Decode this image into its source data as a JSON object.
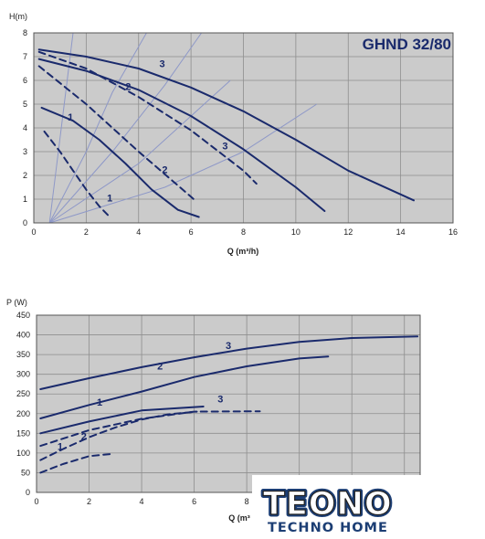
{
  "model_label": "GHND 32/80",
  "logo": {
    "main": "TEONO",
    "sub": "TECHNO HOME"
  },
  "colors": {
    "curve": "#1a2a6c",
    "plot_bg": "#cbcbcb",
    "grid": "#8e8e8e",
    "system_curve": "#8e98c8"
  },
  "chart_data": [
    {
      "type": "line",
      "title": "",
      "xlabel": "Q (m³/h)",
      "ylabel": "H(m)",
      "xlim": [
        0,
        16
      ],
      "ylim": [
        0,
        8
      ],
      "xticks": [
        "0",
        "2",
        "4",
        "6",
        "8",
        "10",
        "12",
        "14",
        "16"
      ],
      "yticks": [
        "0",
        "1",
        "2",
        "3",
        "4",
        "5",
        "6",
        "7",
        "8"
      ],
      "grid": true,
      "series": [
        {
          "name": "1",
          "style": "solid",
          "x": [
            0.3,
            1.5,
            2.5,
            3.5,
            4.5,
            5.5,
            6.3
          ],
          "y": [
            4.85,
            4.3,
            3.5,
            2.5,
            1.4,
            0.55,
            0.25
          ]
        },
        {
          "name": "2",
          "style": "solid",
          "x": [
            0.2,
            2,
            4,
            6,
            8,
            10,
            11.1
          ],
          "y": [
            6.9,
            6.4,
            5.6,
            4.5,
            3.1,
            1.5,
            0.5
          ]
        },
        {
          "name": "3",
          "style": "solid",
          "x": [
            0.2,
            2,
            4,
            6,
            8,
            10,
            12,
            14.5
          ],
          "y": [
            7.3,
            7.0,
            6.5,
            5.7,
            4.7,
            3.5,
            2.2,
            0.95
          ]
        },
        {
          "name": "1",
          "style": "dashed",
          "x": [
            0.4,
            1,
            1.5,
            2,
            2.5,
            2.9
          ],
          "y": [
            3.85,
            3.0,
            2.2,
            1.4,
            0.7,
            0.25
          ]
        },
        {
          "name": "2",
          "style": "dashed",
          "x": [
            0.2,
            2,
            4,
            6,
            6.1
          ],
          "y": [
            6.6,
            5.0,
            3.0,
            1.1,
            1.0
          ]
        },
        {
          "name": "3",
          "style": "dashed",
          "x": [
            0.2,
            2,
            4,
            6,
            8,
            8.5
          ],
          "y": [
            7.2,
            6.5,
            5.3,
            3.9,
            2.2,
            1.65
          ]
        }
      ],
      "system_curves": [
        {
          "x": [
            0.6,
            1.05,
            1.5
          ],
          "y": [
            0,
            4,
            8
          ]
        },
        {
          "x": [
            0.6,
            2.0,
            3.0,
            4.3
          ],
          "y": [
            0,
            3,
            5.5,
            8
          ]
        },
        {
          "x": [
            0.6,
            3.0,
            5.0,
            6.4
          ],
          "y": [
            0,
            3,
            5.8,
            8
          ]
        },
        {
          "x": [
            0.6,
            4.0,
            6.5,
            7.5
          ],
          "y": [
            0,
            2.5,
            5,
            6
          ]
        },
        {
          "x": [
            0.6,
            5.0,
            8.0,
            10.8
          ],
          "y": [
            0,
            1.5,
            3.0,
            5
          ]
        }
      ],
      "curve_labels": [
        {
          "text": "1",
          "x": 1.4,
          "y": 4.3
        },
        {
          "text": "1",
          "x": 2.9,
          "y": 0.9
        },
        {
          "text": "2",
          "x": 3.6,
          "y": 5.6
        },
        {
          "text": "2",
          "x": 5.0,
          "y": 2.1
        },
        {
          "text": "3",
          "x": 4.9,
          "y": 6.55
        },
        {
          "text": "3",
          "x": 7.3,
          "y": 3.1
        }
      ]
    },
    {
      "type": "line",
      "title": "",
      "xlabel": "Q (m³",
      "ylabel": "P (W)",
      "xlim": [
        0,
        14.6
      ],
      "ylim": [
        0,
        450
      ],
      "xticks": [
        "0",
        "2",
        "4",
        "6",
        "8"
      ],
      "xtick_values": [
        0,
        2,
        4,
        6,
        8
      ],
      "yticks": [
        "0",
        "50",
        "100",
        "150",
        "200",
        "250",
        "300",
        "350",
        "400",
        "450"
      ],
      "grid": true,
      "series": [
        {
          "name": "1",
          "style": "solid",
          "x": [
            0.15,
            2,
            4,
            6.35
          ],
          "y": [
            150,
            180,
            208,
            218
          ]
        },
        {
          "name": "2",
          "style": "solid",
          "x": [
            0.15,
            2,
            4,
            6,
            8,
            10,
            11.1
          ],
          "y": [
            188,
            222,
            256,
            293,
            320,
            340,
            345
          ]
        },
        {
          "name": "3",
          "style": "solid",
          "x": [
            0.15,
            2,
            4,
            6,
            8,
            10,
            12,
            14.5
          ],
          "y": [
            262,
            290,
            318,
            343,
            365,
            382,
            392,
            396
          ]
        },
        {
          "name": "1",
          "style": "dashed",
          "x": [
            0.15,
            1,
            2,
            2.9
          ],
          "y": [
            50,
            72,
            92,
            98
          ]
        },
        {
          "name": "2",
          "style": "dashed",
          "x": [
            0.15,
            1,
            2,
            3,
            4,
            5,
            6.1
          ],
          "y": [
            82,
            110,
            140,
            165,
            185,
            198,
            205
          ]
        },
        {
          "name": "3",
          "style": "dashed",
          "x": [
            0.15,
            2,
            4,
            6,
            8.5
          ],
          "y": [
            118,
            158,
            187,
            205,
            206
          ]
        }
      ],
      "curve_labels": [
        {
          "text": "1",
          "x": 2.4,
          "y": 220
        },
        {
          "text": "1",
          "x": 0.9,
          "y": 108
        },
        {
          "text": "2",
          "x": 4.7,
          "y": 312
        },
        {
          "text": "2",
          "x": 1.8,
          "y": 133
        },
        {
          "text": "3",
          "x": 7.3,
          "y": 364
        },
        {
          "text": "3",
          "x": 7.0,
          "y": 228
        }
      ]
    }
  ]
}
